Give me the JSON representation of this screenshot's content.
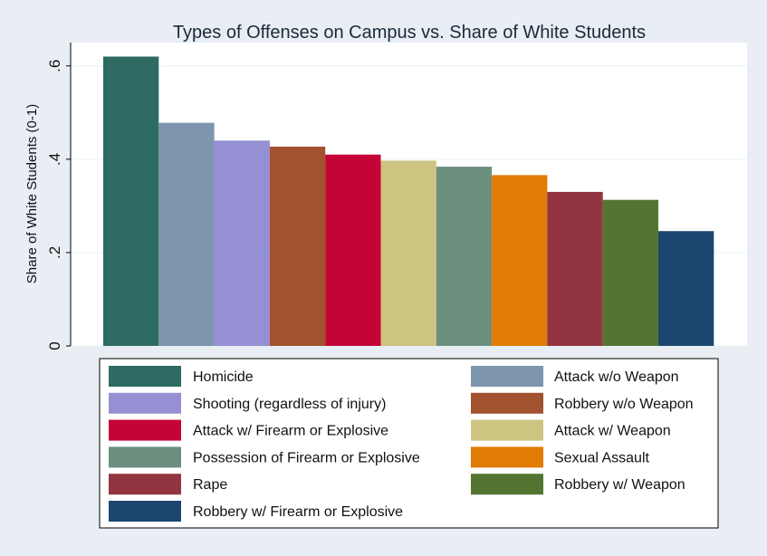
{
  "chart_data": {
    "type": "bar",
    "title": "Types of Offenses on Campus vs. Share of White Students",
    "ylabel": "Share of White Students (0-1)",
    "ylim": [
      0,
      0.65
    ],
    "yticks": [
      0,
      0.2,
      0.4,
      0.6
    ],
    "ytick_labels": [
      "0",
      ".2",
      ".4",
      ".6"
    ],
    "grid": true,
    "legend_position": "bottom",
    "series": [
      {
        "name": "Homicide",
        "value": 0.62,
        "color": "#2e6b62"
      },
      {
        "name": "Attack w/o Weapon",
        "value": 0.478,
        "color": "#7d95ad"
      },
      {
        "name": "Shooting (regardless of injury)",
        "value": 0.44,
        "color": "#9590d3"
      },
      {
        "name": "Robbery w/o Weapon",
        "value": 0.427,
        "color": "#a0532e"
      },
      {
        "name": "Attack w/ Firearm or Explosive",
        "value": 0.41,
        "color": "#c40436"
      },
      {
        "name": "Attack w/ Weapon",
        "value": 0.397,
        "color": "#cdc482"
      },
      {
        "name": "Possession of Firearm or Explosive",
        "value": 0.384,
        "color": "#6c8f80"
      },
      {
        "name": "Sexual Assault",
        "value": 0.366,
        "color": "#e17c05"
      },
      {
        "name": "Rape",
        "value": 0.33,
        "color": "#923540"
      },
      {
        "name": "Robbery w/ Weapon",
        "value": 0.313,
        "color": "#537531"
      },
      {
        "name": "Robbery w/ Firearm or Explosive",
        "value": 0.246,
        "color": "#1c4670"
      }
    ]
  }
}
